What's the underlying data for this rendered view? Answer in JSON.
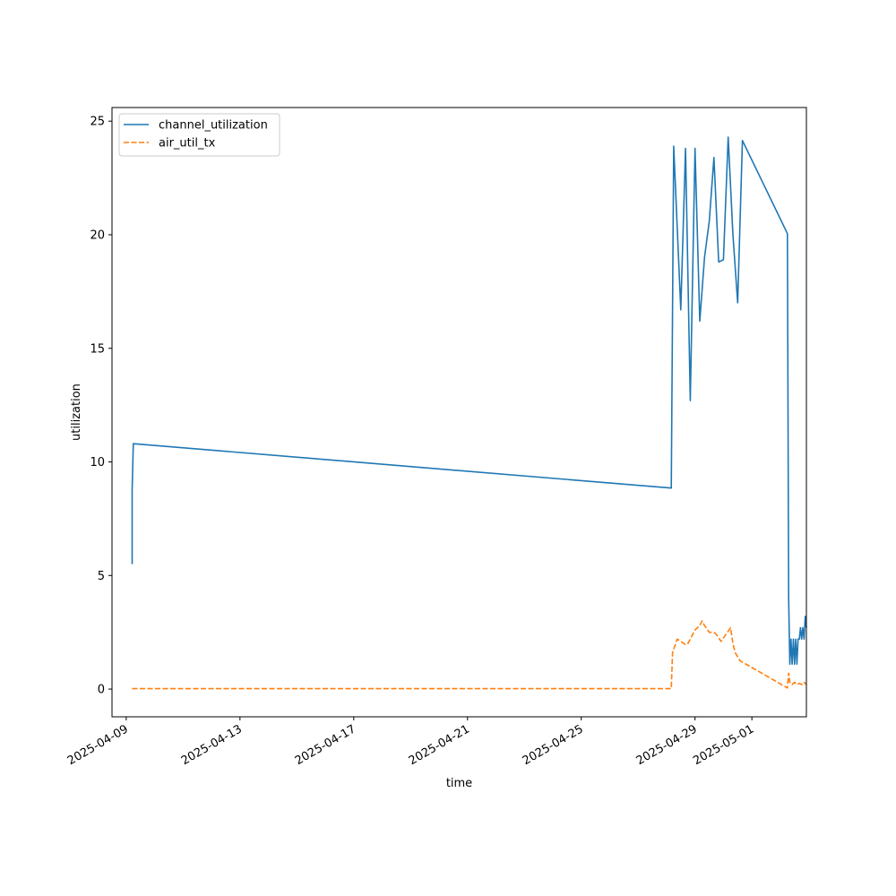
{
  "chart_data": {
    "type": "line",
    "title": "",
    "xlabel": "time",
    "ylabel": "utilization",
    "xlim": [
      "2025-04-08T12:00",
      "2025-05-02T22:00"
    ],
    "ylim": [
      -1.22,
      25.6
    ],
    "x_ticks": [
      "2025-04-09",
      "2025-04-13",
      "2025-04-17",
      "2025-04-21",
      "2025-04-25",
      "2025-04-29",
      "2025-05-01"
    ],
    "y_ticks": [
      0,
      5,
      10,
      15,
      20,
      25
    ],
    "grid": false,
    "legend_position": "upper left",
    "series": [
      {
        "name": "channel_utilization",
        "color": "#1f77b4",
        "dash": "solid",
        "points": [
          [
            "2025-04-09T05:00",
            5.5
          ],
          [
            "2025-04-09T05:00",
            8.8
          ],
          [
            "2025-04-09T06:00",
            10.8
          ],
          [
            "2025-04-28T04:00",
            8.85
          ],
          [
            "2025-04-28T06:00",
            23.9
          ],
          [
            "2025-04-28T12:00",
            16.7
          ],
          [
            "2025-04-28T16:00",
            23.8
          ],
          [
            "2025-04-28T20:00",
            12.7
          ],
          [
            "2025-04-29T00:00",
            23.8
          ],
          [
            "2025-04-29T04:00",
            16.2
          ],
          [
            "2025-04-29T08:00",
            19.0
          ],
          [
            "2025-04-29T12:00",
            20.6
          ],
          [
            "2025-04-29T16:00",
            23.4
          ],
          [
            "2025-04-29T20:00",
            18.8
          ],
          [
            "2025-04-30T00:00",
            18.9
          ],
          [
            "2025-04-30T04:00",
            24.3
          ],
          [
            "2025-04-30T08:00",
            20.0
          ],
          [
            "2025-04-30T12:00",
            17.0
          ],
          [
            "2025-04-30T16:00",
            24.15
          ],
          [
            "2025-05-02T06:00",
            20.05
          ],
          [
            "2025-05-02T07:00",
            4.0
          ],
          [
            "2025-05-02T08:00",
            1.1
          ],
          [
            "2025-05-02T09:00",
            2.2
          ],
          [
            "2025-05-02T10:00",
            1.1
          ],
          [
            "2025-05-02T11:00",
            2.2
          ],
          [
            "2025-05-02T12:00",
            1.1
          ],
          [
            "2025-05-02T13:00",
            2.2
          ],
          [
            "2025-05-02T14:00",
            1.1
          ],
          [
            "2025-05-02T15:00",
            2.2
          ],
          [
            "2025-05-02T16:00",
            2.2
          ],
          [
            "2025-05-02T17:00",
            2.7
          ],
          [
            "2025-05-02T18:00",
            2.2
          ],
          [
            "2025-05-02T19:00",
            2.7
          ],
          [
            "2025-05-02T20:00",
            2.2
          ],
          [
            "2025-05-02T21:00",
            3.2
          ],
          [
            "2025-05-02T22:00",
            2.7
          ]
        ]
      },
      {
        "name": "air_util_tx",
        "color": "#ff7f0e",
        "dash": "dashed",
        "points": [
          [
            "2025-04-09T05:00",
            0.02
          ],
          [
            "2025-04-28T04:00",
            0.02
          ],
          [
            "2025-04-28T05:00",
            1.6
          ],
          [
            "2025-04-28T09:00",
            2.2
          ],
          [
            "2025-04-28T12:00",
            2.1
          ],
          [
            "2025-04-28T16:00",
            1.95
          ],
          [
            "2025-04-28T18:00",
            2.0
          ],
          [
            "2025-04-29T00:00",
            2.6
          ],
          [
            "2025-04-29T04:00",
            2.8
          ],
          [
            "2025-04-29T06:00",
            3.0
          ],
          [
            "2025-04-29T08:00",
            2.8
          ],
          [
            "2025-04-29T12:00",
            2.5
          ],
          [
            "2025-04-29T16:00",
            2.5
          ],
          [
            "2025-04-29T18:00",
            2.4
          ],
          [
            "2025-04-29T22:00",
            2.1
          ],
          [
            "2025-04-30T02:00",
            2.4
          ],
          [
            "2025-04-30T06:00",
            2.7
          ],
          [
            "2025-04-30T08:00",
            2.0
          ],
          [
            "2025-04-30T10:00",
            1.6
          ],
          [
            "2025-04-30T14:00",
            1.25
          ],
          [
            "2025-05-02T06:00",
            0.05
          ],
          [
            "2025-05-02T07:00",
            0.7
          ],
          [
            "2025-05-02T08:00",
            0.3
          ],
          [
            "2025-05-02T10:00",
            0.2
          ],
          [
            "2025-05-02T12:00",
            0.3
          ],
          [
            "2025-05-02T14:00",
            0.2
          ],
          [
            "2025-05-02T16:00",
            0.25
          ],
          [
            "2025-05-02T18:00",
            0.2
          ],
          [
            "2025-05-02T20:00",
            0.3
          ],
          [
            "2025-05-02T22:00",
            0.2
          ]
        ]
      }
    ]
  }
}
